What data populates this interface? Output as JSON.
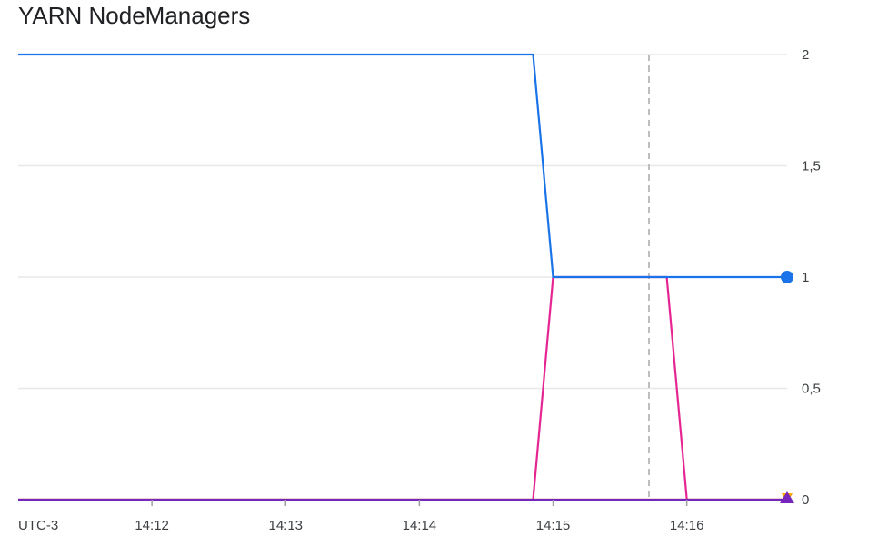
{
  "chart_data": {
    "type": "line",
    "title": "YARN NodeManagers",
    "timezone_label": "UTC-3",
    "x_ticks": [
      "14:12",
      "14:13",
      "14:14",
      "14:15",
      "14:16"
    ],
    "x_range": [
      "14:11:00",
      "14:16:45"
    ],
    "y_ticks": [
      "2",
      "1,5",
      "1",
      "0,5",
      "0"
    ],
    "y_tick_values": [
      2,
      1.5,
      1,
      0.5,
      0
    ],
    "ylim": [
      0,
      2
    ],
    "y_axis_position": "right",
    "grid": true,
    "cursor_time": "14:15:43",
    "series": [
      {
        "color": "#1a73e8",
        "end_marker": "circle",
        "x": [
          "14:11:00",
          "14:14:51",
          "14:15:00",
          "14:16:45"
        ],
        "y": [
          2,
          2,
          1,
          1
        ]
      },
      {
        "color": "#e52592",
        "end_marker": "triangle-down",
        "x": [
          "14:11:00",
          "14:14:51",
          "14:15:00",
          "14:15:51",
          "14:16:00",
          "14:16:45"
        ],
        "y": [
          0,
          0,
          1,
          1,
          0,
          0
        ]
      },
      {
        "color": "#f9ab00",
        "end_marker": "triangle-down",
        "x": [
          "14:11:00",
          "14:16:45"
        ],
        "y": [
          0,
          0
        ]
      },
      {
        "color": "#7627bb",
        "end_marker": "triangle-up",
        "x": [
          "14:11:00",
          "14:16:45"
        ],
        "y": [
          0,
          0
        ]
      }
    ]
  }
}
